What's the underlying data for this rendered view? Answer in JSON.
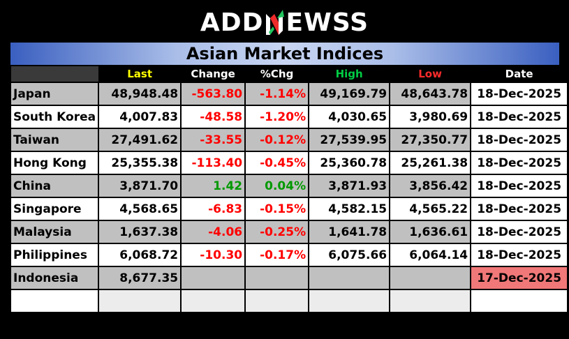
{
  "logo": {
    "left_text": "ADD",
    "right_text": "EWSS",
    "colors": {
      "text": "#ffffff",
      "mark_green": "#22c55e",
      "mark_red": "#ef2b2b"
    }
  },
  "title": "Asian Market Indices",
  "headers": {
    "last": "Last",
    "change": "Change",
    "pct": "%Chg",
    "high": "High",
    "low": "Low",
    "date": "Date"
  },
  "header_colors": {
    "last": "#ffff00",
    "high": "#00cc44",
    "low": "#ff2b2b"
  },
  "rows": [
    {
      "name": "Japan",
      "last": "48,948.48",
      "change": "-563.80",
      "pct": "-1.14%",
      "high": "49,169.79",
      "low": "48,643.78",
      "date": "18-Dec-2025"
    },
    {
      "name": "South Korea",
      "last": "4,007.83",
      "change": "-48.58",
      "pct": "-1.20%",
      "high": "4,030.65",
      "low": "3,980.69",
      "date": "18-Dec-2025"
    },
    {
      "name": "Taiwan",
      "last": "27,491.62",
      "change": "-33.55",
      "pct": "-0.12%",
      "high": "27,539.95",
      "low": "27,350.77",
      "date": "18-Dec-2025"
    },
    {
      "name": "Hong Kong",
      "last": "25,355.38",
      "change": "-113.40",
      "pct": "-0.45%",
      "high": "25,360.78",
      "low": "25,261.38",
      "date": "18-Dec-2025"
    },
    {
      "name": "China",
      "last": "3,871.70",
      "change": "1.42",
      "pct": "0.04%",
      "high": "3,871.93",
      "low": "3,856.42",
      "date": "18-Dec-2025"
    },
    {
      "name": "Singapore",
      "last": "4,568.65",
      "change": "-6.83",
      "pct": "-0.15%",
      "high": "4,582.15",
      "low": "4,565.22",
      "date": "18-Dec-2025"
    },
    {
      "name": "Malaysia",
      "last": "1,637.38",
      "change": "-4.06",
      "pct": "-0.25%",
      "high": "1,641.78",
      "low": "1,636.61",
      "date": "18-Dec-2025"
    },
    {
      "name": "Philippines",
      "last": "6,068.72",
      "change": "-10.30",
      "pct": "-0.17%",
      "high": "6,075.66",
      "low": "6,064.14",
      "date": "18-Dec-2025"
    },
    {
      "name": "Indonesia",
      "last": "8,677.35",
      "change": "",
      "pct": "",
      "high": "",
      "low": "",
      "date": "17-Dec-2025"
    }
  ]
}
